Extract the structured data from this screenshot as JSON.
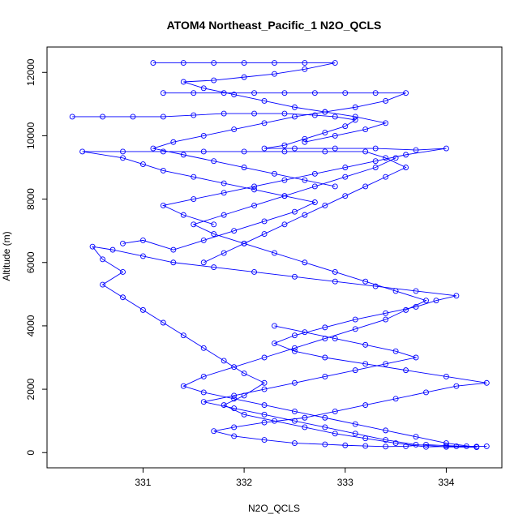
{
  "chart_data": {
    "type": "scatter",
    "title": "ATOM4 Northeast_Pacific_1 N2O_QCLS",
    "xlabel": "N2O_QCLS",
    "ylabel": "Altitude (m)",
    "xlim": [
      330.05,
      334.55
    ],
    "ylim": [
      -480,
      12800
    ],
    "xticks": [
      331,
      332,
      333,
      334
    ],
    "yticks": [
      0,
      2000,
      4000,
      6000,
      8000,
      10000,
      12000
    ],
    "grid": false,
    "marker": "open-circle",
    "connect_points": true,
    "color": "#0000ff",
    "series": [
      {
        "values": [
          [
            334.4,
            200
          ],
          [
            334.2,
            200
          ],
          [
            334.0,
            220
          ],
          [
            333.8,
            250
          ],
          [
            333.6,
            200
          ],
          [
            333.4,
            190
          ],
          [
            333.2,
            210
          ],
          [
            333.0,
            230
          ],
          [
            332.8,
            260
          ],
          [
            332.5,
            300
          ],
          [
            332.2,
            400
          ],
          [
            331.9,
            520
          ],
          [
            331.7,
            680
          ],
          [
            331.9,
            800
          ],
          [
            332.2,
            950
          ],
          [
            332.6,
            1100
          ],
          [
            332.9,
            1300
          ],
          [
            333.2,
            1500
          ],
          [
            333.5,
            1700
          ],
          [
            333.8,
            1900
          ],
          [
            334.1,
            2100
          ],
          [
            334.4,
            2200
          ],
          [
            334.0,
            2400
          ],
          [
            333.6,
            2600
          ],
          [
            333.2,
            2800
          ],
          [
            332.8,
            3000
          ],
          [
            332.5,
            3200
          ],
          [
            332.3,
            3450
          ],
          [
            332.5,
            3700
          ],
          [
            332.8,
            3950
          ],
          [
            333.1,
            4200
          ],
          [
            333.4,
            4400
          ],
          [
            333.7,
            4600
          ],
          [
            333.9,
            4800
          ],
          [
            334.1,
            4950
          ],
          [
            333.7,
            5100
          ],
          [
            333.3,
            5250
          ],
          [
            332.9,
            5400
          ],
          [
            332.5,
            5550
          ],
          [
            332.1,
            5700
          ],
          [
            331.7,
            5850
          ],
          [
            331.3,
            6000
          ],
          [
            331.0,
            6200
          ],
          [
            330.7,
            6400
          ],
          [
            330.5,
            6500
          ],
          [
            330.6,
            6100
          ],
          [
            330.8,
            5700
          ],
          [
            330.6,
            5300
          ],
          [
            330.8,
            4900
          ],
          [
            331.0,
            4500
          ],
          [
            331.2,
            4100
          ],
          [
            331.4,
            3700
          ],
          [
            331.6,
            3300
          ],
          [
            331.8,
            2900
          ],
          [
            332.0,
            2500
          ],
          [
            332.2,
            2200
          ],
          [
            332.0,
            1800
          ],
          [
            331.8,
            1500
          ],
          [
            332.0,
            1200
          ],
          [
            332.3,
            1000
          ],
          [
            332.6,
            800
          ],
          [
            332.9,
            600
          ],
          [
            333.2,
            450
          ],
          [
            333.5,
            300
          ],
          [
            333.8,
            180
          ],
          [
            334.1,
            200
          ],
          [
            334.3,
            190
          ]
        ]
      },
      {
        "values": [
          [
            331.6,
            6000
          ],
          [
            331.8,
            6300
          ],
          [
            332.0,
            6600
          ],
          [
            332.2,
            6900
          ],
          [
            332.4,
            7200
          ],
          [
            332.6,
            7500
          ],
          [
            332.8,
            7800
          ],
          [
            333.0,
            8100
          ],
          [
            333.2,
            8400
          ],
          [
            333.4,
            8700
          ],
          [
            333.6,
            9000
          ],
          [
            333.4,
            9300
          ],
          [
            333.2,
            9500
          ],
          [
            332.8,
            9500
          ],
          [
            332.4,
            9500
          ],
          [
            332.0,
            9500
          ],
          [
            331.6,
            9500
          ],
          [
            331.2,
            9500
          ],
          [
            330.8,
            9500
          ],
          [
            330.4,
            9500
          ],
          [
            330.8,
            9300
          ],
          [
            331.0,
            9100
          ],
          [
            331.2,
            8900
          ],
          [
            331.5,
            8700
          ],
          [
            331.8,
            8500
          ],
          [
            332.1,
            8300
          ],
          [
            332.4,
            8100
          ],
          [
            332.7,
            7900
          ],
          [
            332.5,
            7600
          ],
          [
            332.2,
            7300
          ],
          [
            331.9,
            7000
          ],
          [
            331.6,
            6700
          ],
          [
            331.3,
            6400
          ],
          [
            331.0,
            6700
          ],
          [
            330.8,
            6600
          ]
        ]
      },
      {
        "values": [
          [
            330.3,
            10600
          ],
          [
            330.6,
            10600
          ],
          [
            330.9,
            10600
          ],
          [
            331.2,
            10600
          ],
          [
            331.5,
            10650
          ],
          [
            331.8,
            10700
          ],
          [
            332.1,
            10700
          ],
          [
            332.4,
            10700
          ],
          [
            332.7,
            10650
          ],
          [
            332.9,
            10600
          ],
          [
            333.1,
            10500
          ],
          [
            333.0,
            10300
          ],
          [
            332.8,
            10100
          ],
          [
            332.6,
            9900
          ],
          [
            332.4,
            9700
          ],
          [
            332.2,
            9600
          ],
          [
            332.5,
            9600
          ],
          [
            332.9,
            9600
          ],
          [
            333.3,
            9600
          ],
          [
            333.7,
            9550
          ],
          [
            334.0,
            9600
          ],
          [
            333.6,
            9400
          ],
          [
            333.3,
            9200
          ],
          [
            333.0,
            9000
          ],
          [
            332.7,
            8800
          ],
          [
            332.4,
            8600
          ],
          [
            332.1,
            8400
          ],
          [
            331.8,
            8200
          ],
          [
            331.5,
            8000
          ],
          [
            331.2,
            7800
          ],
          [
            331.4,
            7500
          ],
          [
            331.7,
            7200
          ]
        ]
      },
      {
        "values": [
          [
            331.2,
            11350
          ],
          [
            331.5,
            11350
          ],
          [
            331.8,
            11350
          ],
          [
            332.1,
            11350
          ],
          [
            332.4,
            11350
          ],
          [
            332.7,
            11350
          ],
          [
            333.0,
            11350
          ],
          [
            333.3,
            11350
          ],
          [
            333.6,
            11350
          ],
          [
            333.4,
            11100
          ],
          [
            333.1,
            10900
          ],
          [
            332.8,
            10750
          ],
          [
            332.5,
            10600
          ],
          [
            332.2,
            10400
          ],
          [
            331.9,
            10200
          ],
          [
            331.6,
            10000
          ],
          [
            331.3,
            9800
          ],
          [
            331.1,
            9600
          ],
          [
            331.4,
            9400
          ],
          [
            331.7,
            9200
          ],
          [
            332.0,
            9000
          ],
          [
            332.3,
            8800
          ],
          [
            332.6,
            8600
          ],
          [
            332.9,
            8400
          ]
        ]
      },
      {
        "values": [
          [
            331.1,
            12300
          ],
          [
            331.4,
            12300
          ],
          [
            331.7,
            12300
          ],
          [
            332.0,
            12300
          ],
          [
            332.3,
            12300
          ],
          [
            332.6,
            12300
          ],
          [
            332.9,
            12300
          ],
          [
            332.6,
            12100
          ],
          [
            332.3,
            11950
          ],
          [
            332.0,
            11850
          ],
          [
            331.7,
            11750
          ],
          [
            331.4,
            11700
          ],
          [
            331.6,
            11500
          ],
          [
            331.9,
            11300
          ],
          [
            332.2,
            11100
          ],
          [
            332.5,
            10900
          ],
          [
            332.8,
            10750
          ],
          [
            333.1,
            10600
          ],
          [
            333.4,
            10400
          ],
          [
            333.2,
            10200
          ],
          [
            332.9,
            10000
          ],
          [
            332.6,
            9800
          ]
        ]
      },
      {
        "values": [
          [
            332.3,
            4000
          ],
          [
            332.6,
            3800
          ],
          [
            332.9,
            3600
          ],
          [
            333.2,
            3400
          ],
          [
            333.5,
            3200
          ],
          [
            333.7,
            3000
          ],
          [
            333.4,
            2800
          ],
          [
            333.1,
            2600
          ],
          [
            332.8,
            2400
          ],
          [
            332.5,
            2200
          ],
          [
            332.2,
            2000
          ],
          [
            331.9,
            1800
          ],
          [
            331.6,
            1600
          ],
          [
            331.9,
            1400
          ],
          [
            332.2,
            1200
          ],
          [
            332.5,
            1000
          ],
          [
            332.8,
            800
          ],
          [
            333.1,
            600
          ],
          [
            333.4,
            400
          ],
          [
            333.7,
            250
          ],
          [
            334.0,
            180
          ],
          [
            334.3,
            170
          ],
          [
            334.0,
            300
          ],
          [
            333.7,
            500
          ],
          [
            333.4,
            700
          ],
          [
            333.1,
            900
          ],
          [
            332.8,
            1100
          ],
          [
            332.5,
            1300
          ],
          [
            332.2,
            1500
          ],
          [
            331.9,
            1700
          ],
          [
            331.6,
            1900
          ],
          [
            331.4,
            2100
          ],
          [
            331.6,
            2400
          ],
          [
            331.9,
            2700
          ],
          [
            332.2,
            3000
          ],
          [
            332.5,
            3300
          ],
          [
            332.8,
            3600
          ],
          [
            333.1,
            3900
          ],
          [
            333.4,
            4200
          ],
          [
            333.6,
            4500
          ],
          [
            333.8,
            4800
          ],
          [
            333.5,
            5100
          ],
          [
            333.2,
            5400
          ],
          [
            332.9,
            5700
          ],
          [
            332.6,
            6000
          ],
          [
            332.3,
            6300
          ],
          [
            332.0,
            6600
          ],
          [
            331.7,
            6900
          ],
          [
            331.5,
            7200
          ],
          [
            331.8,
            7500
          ],
          [
            332.1,
            7800
          ],
          [
            332.4,
            8100
          ],
          [
            332.7,
            8400
          ],
          [
            333.0,
            8700
          ],
          [
            333.3,
            9000
          ],
          [
            333.5,
            9300
          ]
        ]
      }
    ]
  }
}
